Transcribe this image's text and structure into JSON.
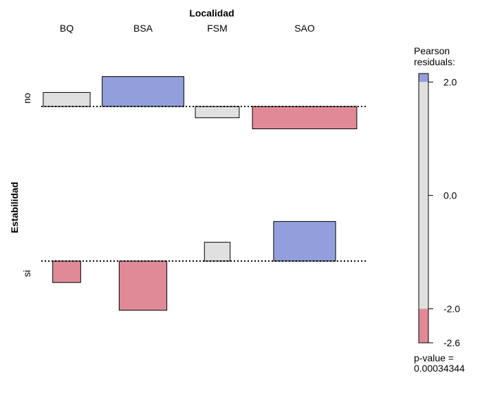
{
  "chart_data": {
    "type": "association_plot",
    "title": "Localidad",
    "xlabel": "Localidad",
    "ylabel": "Estabilidad",
    "categories": [
      "BQ",
      "BSA",
      "FSM",
      "SAO"
    ],
    "rows": [
      "no",
      "si"
    ],
    "series": [
      {
        "name": "no",
        "residuals": [
          1.42,
          3.02,
          -1.14,
          -2.26
        ],
        "widths": [
          0.62,
          1.08,
          0.58,
          1.38
        ]
      },
      {
        "name": "si",
        "residuals": [
          -2.17,
          -4.97,
          1.9,
          4.0
        ],
        "widths": [
          0.37,
          0.63,
          0.34,
          0.82
        ]
      }
    ],
    "legend": {
      "title_line1": "Pearson",
      "title_line2": "residuals:",
      "ticks": [
        "2.0",
        "0.0",
        "-2.0",
        "-2.6"
      ],
      "tick_values": [
        2.0,
        0.0,
        -2.0,
        -2.6
      ],
      "range": [
        -2.6,
        2.15
      ],
      "placement": "right",
      "shading_thresholds": [
        2.0,
        -2.0
      ],
      "pvalue_label": "p-value =",
      "pvalue": "0.00034344"
    },
    "colors": {
      "positive": "#929FDC",
      "negative": "#E08A98",
      "neutral": "#E0E0E0",
      "border": "#000000"
    }
  }
}
